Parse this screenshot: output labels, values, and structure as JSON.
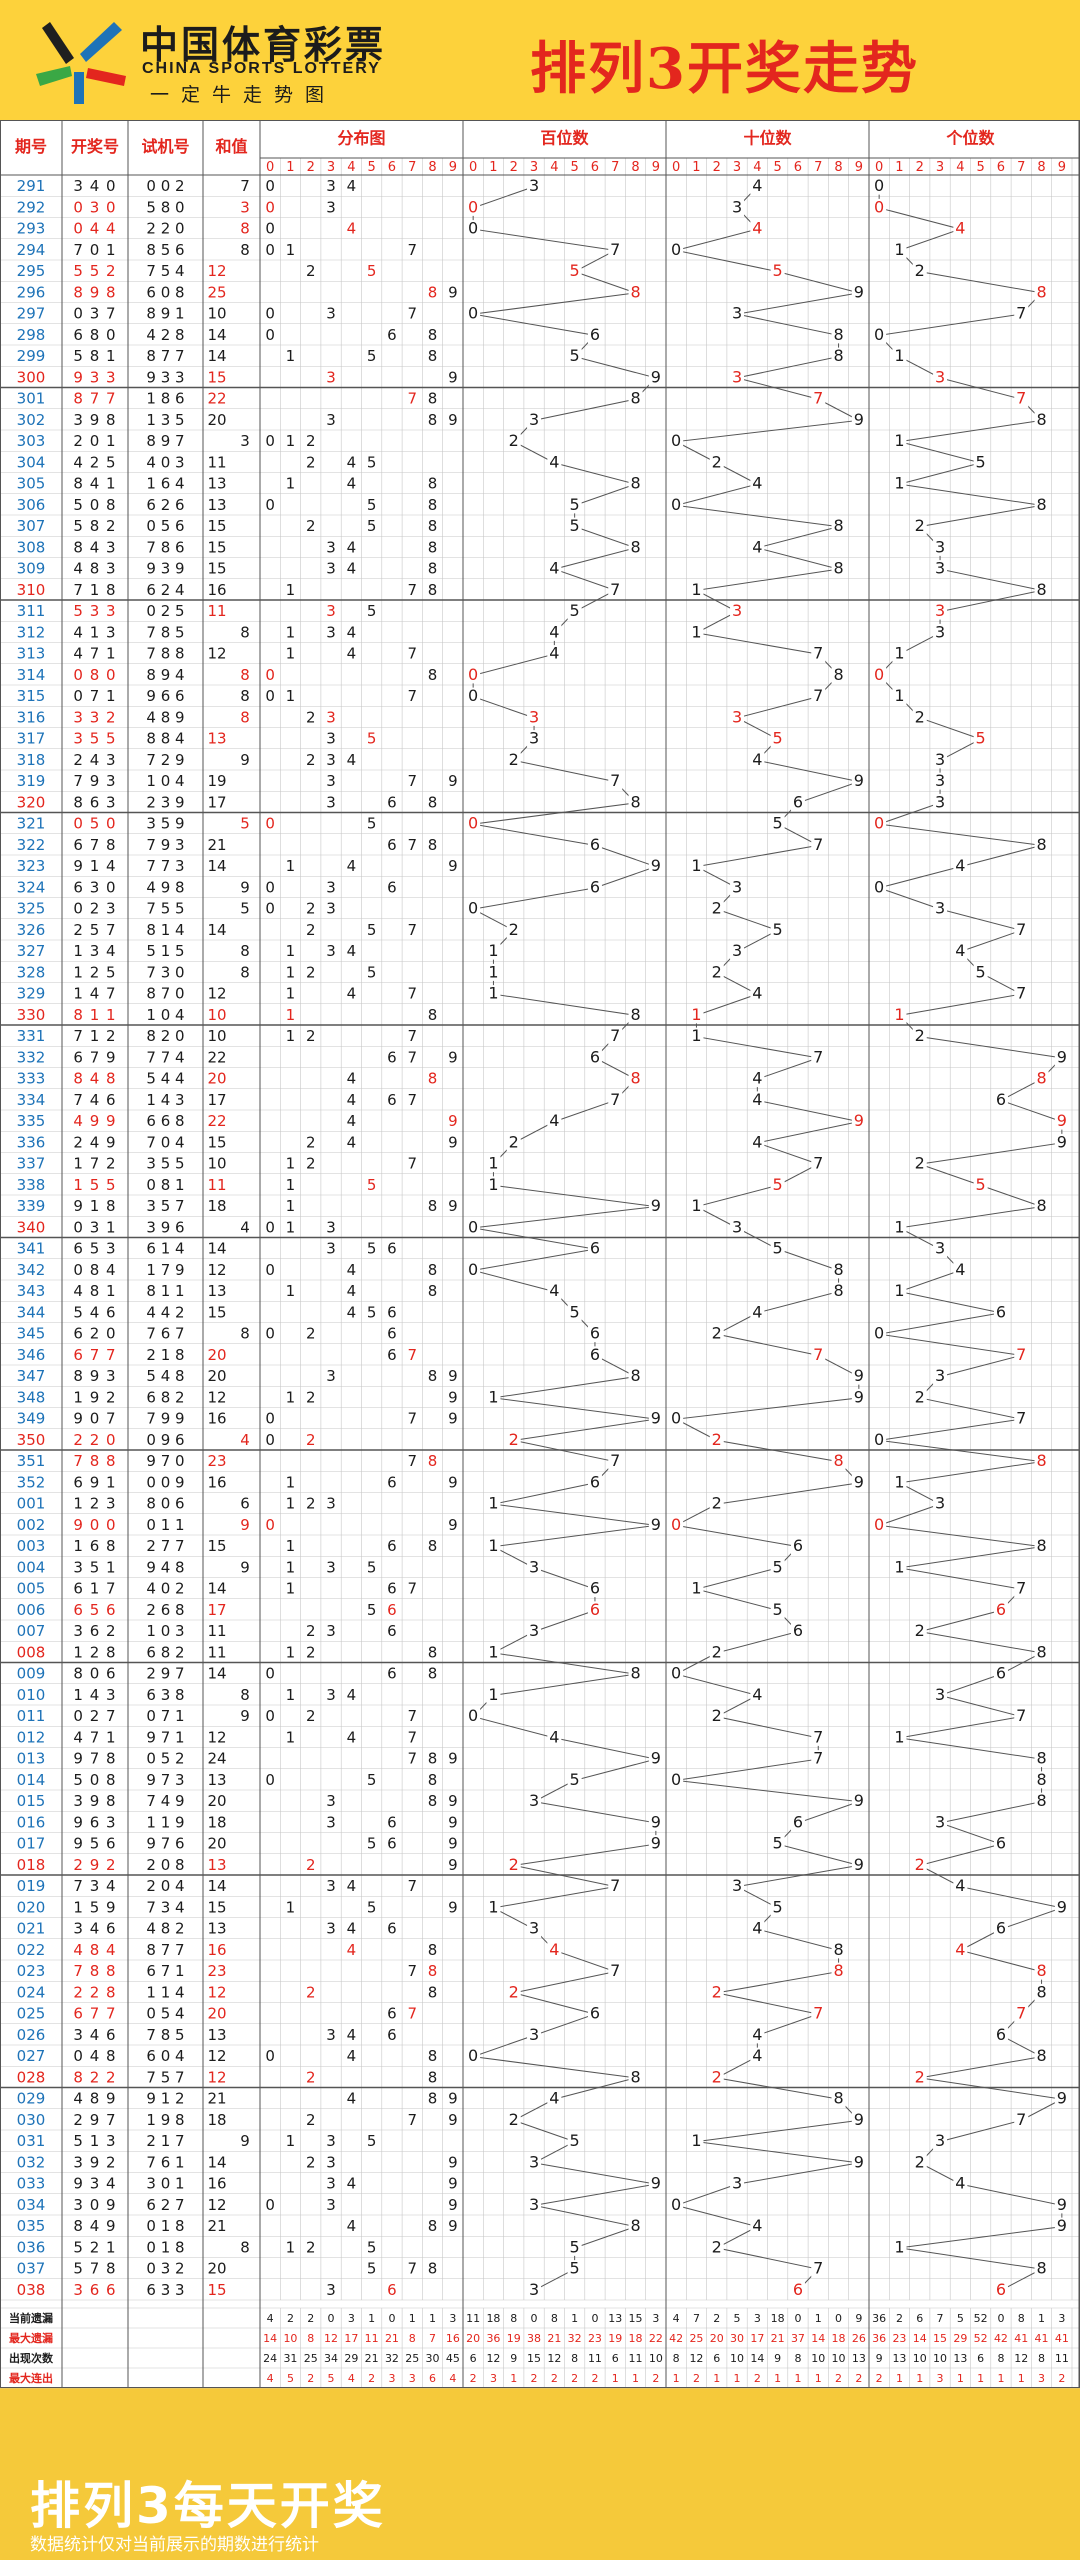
{
  "header": {
    "logo_cn": "中国体育彩票",
    "logo_en": "CHINA SPORTS LOTTERY",
    "logo_slogan": "一定牛走势图",
    "title": "排列3开奖走势"
  },
  "footer": {
    "title": "排列3每天开奖",
    "note": "数据统计仅对当前展示的期数进行统计"
  },
  "colors": {
    "red": "#e3261e",
    "blue": "#1e73b8",
    "grid": "#c7c7c7",
    "sep": "#555555",
    "accent": "#fdd23b"
  },
  "chart_data": {
    "type": "table",
    "columns": [
      "期号",
      "开奖号",
      "试机号",
      "和值"
    ],
    "section_headers": [
      "分布图",
      "百位数",
      "十位数",
      "个位数"
    ],
    "digits": [
      "0",
      "1",
      "2",
      "3",
      "4",
      "5",
      "6",
      "7",
      "8",
      "9"
    ],
    "rows": [
      {
        "issue": "291",
        "draw": "340",
        "test": "002"
      },
      {
        "issue": "292",
        "draw": "030",
        "test": "580"
      },
      {
        "issue": "293",
        "draw": "044",
        "test": "220"
      },
      {
        "issue": "294",
        "draw": "701",
        "test": "856"
      },
      {
        "issue": "295",
        "draw": "552",
        "test": "754"
      },
      {
        "issue": "296",
        "draw": "898",
        "test": "608"
      },
      {
        "issue": "297",
        "draw": "037",
        "test": "891"
      },
      {
        "issue": "298",
        "draw": "680",
        "test": "428"
      },
      {
        "issue": "299",
        "draw": "581",
        "test": "877"
      },
      {
        "issue": "300",
        "draw": "933",
        "test": "933"
      },
      {
        "issue": "301",
        "draw": "877",
        "test": "186"
      },
      {
        "issue": "302",
        "draw": "398",
        "test": "135"
      },
      {
        "issue": "303",
        "draw": "201",
        "test": "897"
      },
      {
        "issue": "304",
        "draw": "425",
        "test": "403"
      },
      {
        "issue": "305",
        "draw": "841",
        "test": "164"
      },
      {
        "issue": "306",
        "draw": "508",
        "test": "626"
      },
      {
        "issue": "307",
        "draw": "582",
        "test": "056"
      },
      {
        "issue": "308",
        "draw": "843",
        "test": "786"
      },
      {
        "issue": "309",
        "draw": "483",
        "test": "939"
      },
      {
        "issue": "310",
        "draw": "718",
        "test": "624"
      },
      {
        "issue": "311",
        "draw": "533",
        "test": "025"
      },
      {
        "issue": "312",
        "draw": "413",
        "test": "785"
      },
      {
        "issue": "313",
        "draw": "471",
        "test": "788"
      },
      {
        "issue": "314",
        "draw": "080",
        "test": "894"
      },
      {
        "issue": "315",
        "draw": "071",
        "test": "966"
      },
      {
        "issue": "316",
        "draw": "332",
        "test": "489"
      },
      {
        "issue": "317",
        "draw": "355",
        "test": "884"
      },
      {
        "issue": "318",
        "draw": "243",
        "test": "729"
      },
      {
        "issue": "319",
        "draw": "793",
        "test": "104"
      },
      {
        "issue": "320",
        "draw": "863",
        "test": "239"
      },
      {
        "issue": "321",
        "draw": "050",
        "test": "359"
      },
      {
        "issue": "322",
        "draw": "678",
        "test": "793"
      },
      {
        "issue": "323",
        "draw": "914",
        "test": "773"
      },
      {
        "issue": "324",
        "draw": "630",
        "test": "498"
      },
      {
        "issue": "325",
        "draw": "023",
        "test": "755"
      },
      {
        "issue": "326",
        "draw": "257",
        "test": "814"
      },
      {
        "issue": "327",
        "draw": "134",
        "test": "515"
      },
      {
        "issue": "328",
        "draw": "125",
        "test": "730"
      },
      {
        "issue": "329",
        "draw": "147",
        "test": "870"
      },
      {
        "issue": "330",
        "draw": "811",
        "test": "104"
      },
      {
        "issue": "331",
        "draw": "712",
        "test": "820"
      },
      {
        "issue": "332",
        "draw": "679",
        "test": "774"
      },
      {
        "issue": "333",
        "draw": "848",
        "test": "544"
      },
      {
        "issue": "334",
        "draw": "746",
        "test": "143"
      },
      {
        "issue": "335",
        "draw": "499",
        "test": "668"
      },
      {
        "issue": "336",
        "draw": "249",
        "test": "704"
      },
      {
        "issue": "337",
        "draw": "172",
        "test": "355"
      },
      {
        "issue": "338",
        "draw": "155",
        "test": "081"
      },
      {
        "issue": "339",
        "draw": "918",
        "test": "357"
      },
      {
        "issue": "340",
        "draw": "031",
        "test": "396"
      },
      {
        "issue": "341",
        "draw": "653",
        "test": "614"
      },
      {
        "issue": "342",
        "draw": "084",
        "test": "179"
      },
      {
        "issue": "343",
        "draw": "481",
        "test": "811"
      },
      {
        "issue": "344",
        "draw": "546",
        "test": "442"
      },
      {
        "issue": "345",
        "draw": "620",
        "test": "767"
      },
      {
        "issue": "346",
        "draw": "677",
        "test": "218"
      },
      {
        "issue": "347",
        "draw": "893",
        "test": "548"
      },
      {
        "issue": "348",
        "draw": "192",
        "test": "682"
      },
      {
        "issue": "349",
        "draw": "907",
        "test": "799"
      },
      {
        "issue": "350",
        "draw": "220",
        "test": "096"
      },
      {
        "issue": "351",
        "draw": "788",
        "test": "970"
      },
      {
        "issue": "352",
        "draw": "691",
        "test": "009"
      },
      {
        "issue": "001",
        "draw": "123",
        "test": "806"
      },
      {
        "issue": "002",
        "draw": "900",
        "test": "011"
      },
      {
        "issue": "003",
        "draw": "168",
        "test": "277"
      },
      {
        "issue": "004",
        "draw": "351",
        "test": "948"
      },
      {
        "issue": "005",
        "draw": "617",
        "test": "402"
      },
      {
        "issue": "006",
        "draw": "656",
        "test": "268"
      },
      {
        "issue": "007",
        "draw": "362",
        "test": "103"
      },
      {
        "issue": "008",
        "draw": "128",
        "test": "682"
      },
      {
        "issue": "009",
        "draw": "806",
        "test": "297"
      },
      {
        "issue": "010",
        "draw": "143",
        "test": "638"
      },
      {
        "issue": "011",
        "draw": "027",
        "test": "071"
      },
      {
        "issue": "012",
        "draw": "471",
        "test": "971"
      },
      {
        "issue": "013",
        "draw": "978",
        "test": "052"
      },
      {
        "issue": "014",
        "draw": "508",
        "test": "973"
      },
      {
        "issue": "015",
        "draw": "398",
        "test": "749"
      },
      {
        "issue": "016",
        "draw": "963",
        "test": "119"
      },
      {
        "issue": "017",
        "draw": "956",
        "test": "976"
      },
      {
        "issue": "018",
        "draw": "292",
        "test": "208"
      },
      {
        "issue": "019",
        "draw": "734",
        "test": "204"
      },
      {
        "issue": "020",
        "draw": "159",
        "test": "734"
      },
      {
        "issue": "021",
        "draw": "346",
        "test": "482"
      },
      {
        "issue": "022",
        "draw": "484",
        "test": "877"
      },
      {
        "issue": "023",
        "draw": "788",
        "test": "671"
      },
      {
        "issue": "024",
        "draw": "228",
        "test": "114"
      },
      {
        "issue": "025",
        "draw": "677",
        "test": "054"
      },
      {
        "issue": "026",
        "draw": "346",
        "test": "785"
      },
      {
        "issue": "027",
        "draw": "048",
        "test": "604"
      },
      {
        "issue": "028",
        "draw": "822",
        "test": "757"
      },
      {
        "issue": "029",
        "draw": "489",
        "test": "912"
      },
      {
        "issue": "030",
        "draw": "297",
        "test": "198"
      },
      {
        "issue": "031",
        "draw": "513",
        "test": "217"
      },
      {
        "issue": "032",
        "draw": "392",
        "test": "761"
      },
      {
        "issue": "033",
        "draw": "934",
        "test": "301"
      },
      {
        "issue": "034",
        "draw": "309",
        "test": "627"
      },
      {
        "issue": "035",
        "draw": "849",
        "test": "018"
      },
      {
        "issue": "036",
        "draw": "521",
        "test": "018"
      },
      {
        "issue": "037",
        "draw": "578",
        "test": "032"
      },
      {
        "issue": "038",
        "draw": "366",
        "test": "633"
      }
    ],
    "stats": [
      {
        "label": "当前遗漏",
        "color": "#1c1c1c",
        "dist": [
          "4",
          "2",
          "2",
          "0",
          "3",
          "1",
          "0",
          "1",
          "1",
          "3"
        ],
        "hundreds": [
          "11",
          "18",
          "8",
          "0",
          "8",
          "1",
          "0",
          "13",
          "15",
          "3"
        ],
        "tens": [
          "4",
          "7",
          "2",
          "5",
          "3",
          "18",
          "0",
          "1",
          "0",
          "9"
        ],
        "units": [
          "36",
          "2",
          "6",
          "7",
          "5",
          "52",
          "0",
          "8",
          "1",
          "3"
        ]
      },
      {
        "label": "最大遗漏",
        "color": "#e3261e",
        "dist": [
          "14",
          "10",
          "8",
          "12",
          "17",
          "11",
          "21",
          "8",
          "7",
          "16"
        ],
        "hundreds": [
          "20",
          "36",
          "19",
          "38",
          "21",
          "32",
          "23",
          "19",
          "18",
          "22"
        ],
        "tens": [
          "42",
          "25",
          "20",
          "30",
          "17",
          "21",
          "37",
          "14",
          "18",
          "26"
        ],
        "units": [
          "36",
          "23",
          "14",
          "15",
          "29",
          "52",
          "42",
          "41",
          "41",
          "41"
        ]
      },
      {
        "label": "出现次数",
        "color": "#1c1c1c",
        "dist": [
          "24",
          "31",
          "25",
          "34",
          "29",
          "21",
          "32",
          "25",
          "30",
          "45"
        ],
        "hundreds": [
          "6",
          "12",
          "9",
          "15",
          "12",
          "8",
          "11",
          "6",
          "11",
          "10"
        ],
        "tens": [
          "8",
          "12",
          "6",
          "10",
          "14",
          "9",
          "8",
          "10",
          "10",
          "13"
        ],
        "units": [
          "9",
          "13",
          "10",
          "10",
          "13",
          "6",
          "8",
          "12",
          "8",
          "11"
        ]
      },
      {
        "label": "最大连出",
        "color": "#e3261e",
        "dist": [
          "4",
          "5",
          "2",
          "5",
          "4",
          "2",
          "3",
          "3",
          "6",
          "4"
        ],
        "hundreds": [
          "2",
          "3",
          "1",
          "2",
          "2",
          "2",
          "2",
          "1",
          "1",
          "2"
        ],
        "tens": [
          "1",
          "2",
          "1",
          "1",
          "2",
          "1",
          "1",
          "1",
          "2",
          "2"
        ],
        "units": [
          "2",
          "1",
          "1",
          "3",
          "1",
          "1",
          "1",
          "1",
          "3",
          "2"
        ]
      }
    ]
  }
}
